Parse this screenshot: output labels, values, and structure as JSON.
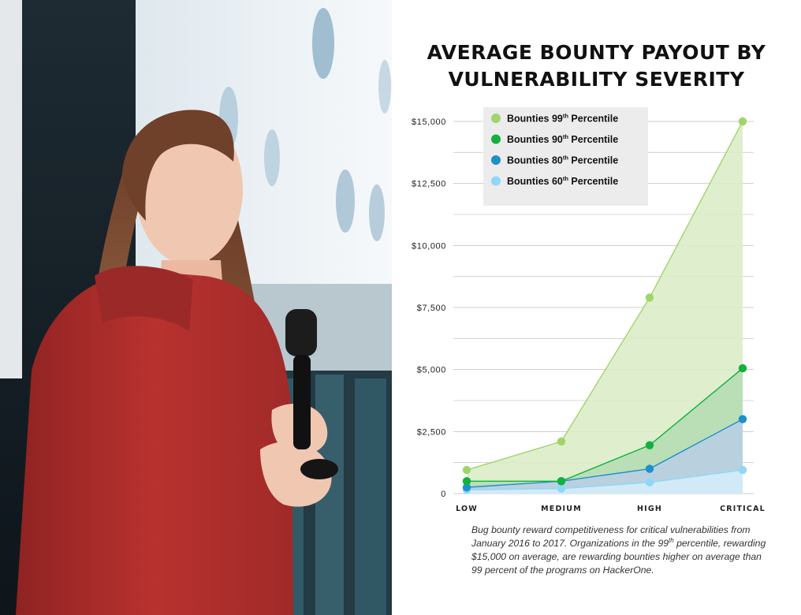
{
  "colors": {
    "p99": "#9fd56b",
    "p90": "#11b03f",
    "p80": "#1e8fcd",
    "p60": "#8fd8f5",
    "fill_p99": "#d9ecc6",
    "fill_p90": "#b4dcb2",
    "fill_p80": "#b9cfe6",
    "fill_p60": "#d6effb",
    "grid": "#cccccc",
    "legend_bg": "#ececec"
  },
  "chart_data": {
    "type": "area",
    "title": "AVERAGE BOUNTY PAYOUT BY VULNERABILITY SEVERITY",
    "title_lines": [
      "AVERAGE BOUNTY PAYOUT BY",
      "VULNERABILITY SEVERITY"
    ],
    "categories": [
      "LOW",
      "MEDIUM",
      "HIGH",
      "CRITICAL"
    ],
    "y_ticks": [
      0,
      2500,
      5000,
      7500,
      10000,
      12500,
      15000
    ],
    "y_tick_labels": [
      "0",
      "$2,500",
      "$5,000",
      "$7,500",
      "$10,000",
      "$12,500",
      "$15,000"
    ],
    "ylim": [
      0,
      15000
    ],
    "grid": true,
    "legend_position": "top-left",
    "series": [
      {
        "key": "p99",
        "name": "Bounties 99th Percentile",
        "legend_main": "Bounties 99",
        "legend_sup": "th",
        "legend_rest": " Percentile",
        "values": [
          950,
          2100,
          7900,
          15000
        ]
      },
      {
        "key": "p90",
        "name": "Bounties 90th Percentile",
        "legend_main": "Bounties 90",
        "legend_sup": "th",
        "legend_rest": " Percentile",
        "values": [
          500,
          500,
          1950,
          5050
        ]
      },
      {
        "key": "p80",
        "name": "Bounties 80th Percentile",
        "legend_main": "Bounties 80",
        "legend_sup": "th",
        "legend_rest": " Percentile",
        "values": [
          250,
          500,
          1000,
          3000
        ]
      },
      {
        "key": "p60",
        "name": "Bounties 60th Percentile",
        "legend_main": "Bounties 60",
        "legend_sup": "th",
        "legend_rest": " Percentile",
        "values": [
          150,
          200,
          450,
          950
        ]
      }
    ]
  },
  "caption": {
    "before_sup": "Bug bounty reward competitiveness for critical vulnerabilities from January 2016 to 2017. Organizations in the 99",
    "sup": "th",
    "after_sup": " percentile, rewarding $15,000 on average, are rewarding bounties higher on average than 99 percent of the programs on HackerOne."
  }
}
